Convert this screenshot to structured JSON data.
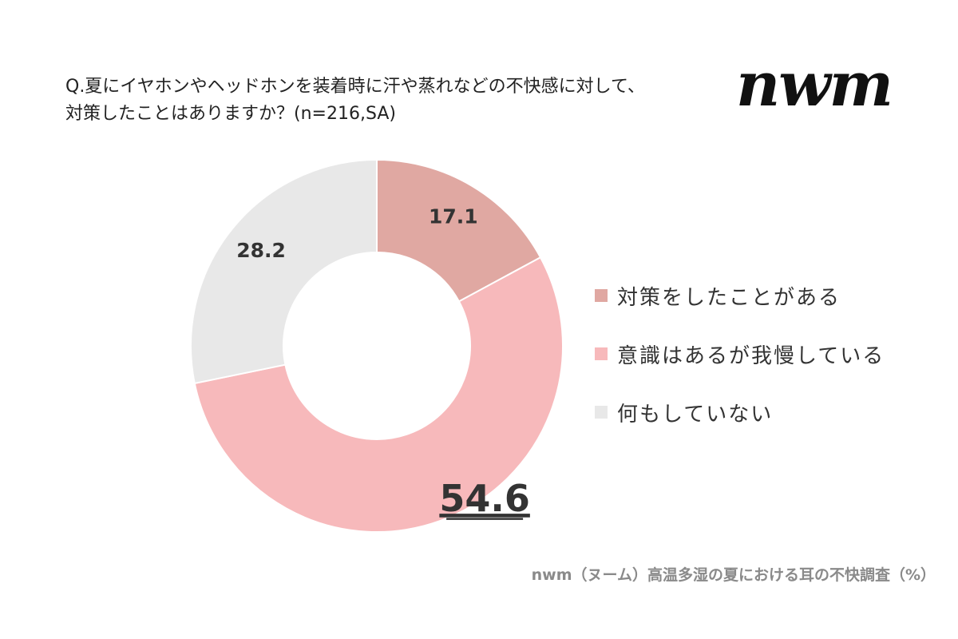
{
  "title_lines": [
    "Q.夏にイヤホンやヘッドホンを装着時に汗や蒸れなどの不快感に対して、",
    "対策したことはありますか？(n=216,SA)"
  ],
  "logo_text": "nwm",
  "source": "nwm（ヌーム）高温多湿の夏における耳の不快調査（%）",
  "chart_data": {
    "type": "pie",
    "variant": "donut",
    "title": "",
    "unit": "%",
    "categories": [
      "対策をしたことがある",
      "意識はあるが我慢している",
      "何もしていない"
    ],
    "values": [
      17.1,
      54.6,
      28.2
    ],
    "labels": [
      "17.1",
      "54.6",
      "28.2"
    ],
    "colors": [
      "#e0a8a2",
      "#f7b9bb",
      "#e8e8e8"
    ],
    "highlight": "54.6",
    "legend_position": "right",
    "start": "12 o'clock",
    "direction": "clockwise"
  }
}
